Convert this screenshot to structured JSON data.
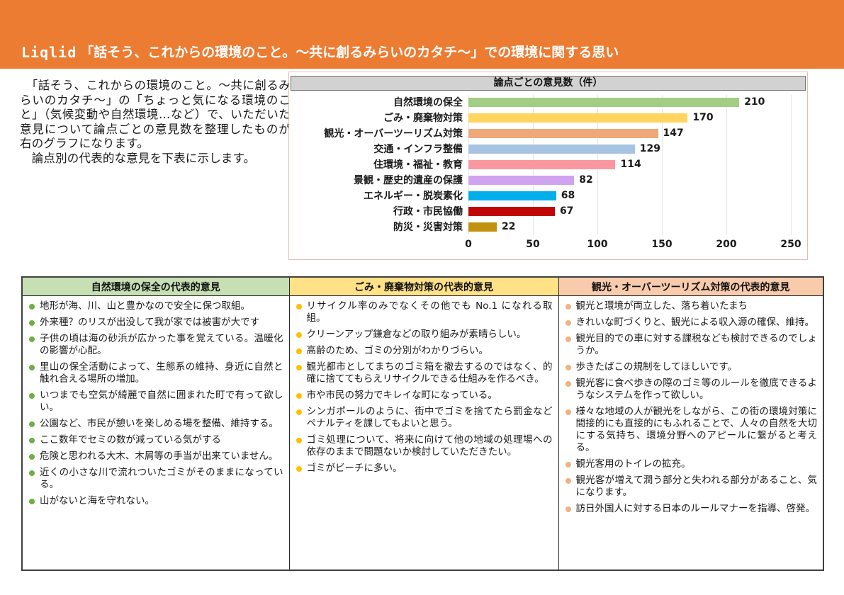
{
  "header": {
    "brand": "Liqlid",
    "title": "「話そう、これからの環境のこと。～共に創るみらいのカタチ～」での環境に関する思い"
  },
  "intro": {
    "paragraph1": "　「話そう、これからの環境のこと。～共に創るみらいのカタチ～」の「ちょっと気になる環境のこと」（気候変動や自然環境…など）で、いただいた意見について論点ごとの意見数を整理したものが右のグラフになります。",
    "paragraph2": "　論点別の代表的な意見を下表に示します。"
  },
  "chart_data": {
    "type": "bar",
    "orientation": "horizontal",
    "title": "論点ごとの意見数（件）",
    "categories": [
      "自然環境の保全",
      "ごみ・廃棄物対策",
      "観光・オーバーツーリズム対策",
      "交通・インフラ整備",
      "住環境・福祉・教育",
      "景観・歴史的遺産の保護",
      "エネルギー・脱炭素化",
      "行政・市民協働",
      "防災・災害対策"
    ],
    "values": [
      210,
      170,
      147,
      129,
      114,
      82,
      68,
      67,
      22
    ],
    "bar_colors": [
      "#A3CC84",
      "#FFD55F",
      "#EFA87A",
      "#A6C3E2",
      "#FB97A0",
      "#D0A3F0",
      "#00AEEA",
      "#C00606",
      "#C39110"
    ],
    "xlabel": "",
    "ylabel": "",
    "xlim": [
      0,
      250
    ],
    "x_ticks": [
      0,
      50,
      100,
      150,
      200,
      250
    ],
    "grid": "vertical-light",
    "value_labels": true,
    "legend": "none"
  },
  "table": {
    "columns": [
      {
        "header": "自然環境の保全の代表的意見",
        "header_bg": "#C6E0B4",
        "bullet_color": "#6FAE46",
        "items": [
          "地形が海、川、山と豊かなので安全に保つ取組。",
          "外来種？のリスが出没して我が家では被害が大です",
          "子供の頃は海の砂浜が広かった事を覚えている。温暖化の影響が心配。",
          "里山の保全活動によって、生態系の維持、身近に自然と触れ合える場所の増加。",
          "いつまでも空気が綺麗で自然に囲まれた町で有って欲しい。",
          "公園など、市民が憩いを楽しめる場を整備、維持する。",
          "ここ数年でセミの数が減っている気がする",
          "危険と思われる大木、木屑等の手当が出来ていません。",
          "近くの小さな川で流れついたゴミがそのままになっている。",
          "山がないと海を守れない。"
        ]
      },
      {
        "header": "ごみ・廃棄物対策の代表的意見",
        "header_bg": "#FFE188",
        "bullet_color": "#FFC000",
        "items": [
          "リサイクル率のみでなくその他でも No.1 になれる取組。",
          "クリーンアップ鎌倉などの取り組みが素晴らしい。",
          "高齢のため、ゴミの分別がわかりづらい。",
          "観光都市としてまちのゴミ箱を撤去するのではなく、的確に捨ててもらえリサイクルできる仕組みを作るべき。",
          "市や市民の努力でキレイな町になっている。",
          "シンガポールのように、街中でゴミを捨てたら罰金などペナルティを課してもよいと思う。",
          "ゴミ処理について、将来に向けて他の地域の処理場への依存のままで問題ないか検討していただきたい。",
          "ゴミがビーチに多い。"
        ]
      },
      {
        "header": "観光・オーバーツーリズム対策の代表的意見",
        "header_bg": "#F8CBAD",
        "bullet_color": "#F2B183",
        "items": [
          "観光と環境が両立した、落ち着いたまち",
          "きれいな町づくりと、観光による収入源の確保、維持。",
          "観光目的での車に対する課税なども検討できるのでしょうか。",
          "歩きたばこの規制をしてほしいです。",
          "観光客に食べ歩きの際のゴミ等のルールを徹底できるようなシステムを作って欲しい。",
          "様々な地域の人が観光をしながら、この街の環境対策に間接的にも直接的にもふれることで、人々の自然を大切にする気持ち、環境分野へのアピールに繋がると考える。",
          "観光客用のトイレの拡充。",
          "観光客が増えて潤う部分と失われる部分があること、気になります。",
          "訪日外国人に対する日本のルールマナーを指導、啓発。"
        ]
      }
    ]
  },
  "colors": {
    "accent_orange": "#ED7C33",
    "chart_title_bg": "#D2D2D2",
    "chart_border": "#E6BDBD",
    "text": "#1A1A1A"
  }
}
